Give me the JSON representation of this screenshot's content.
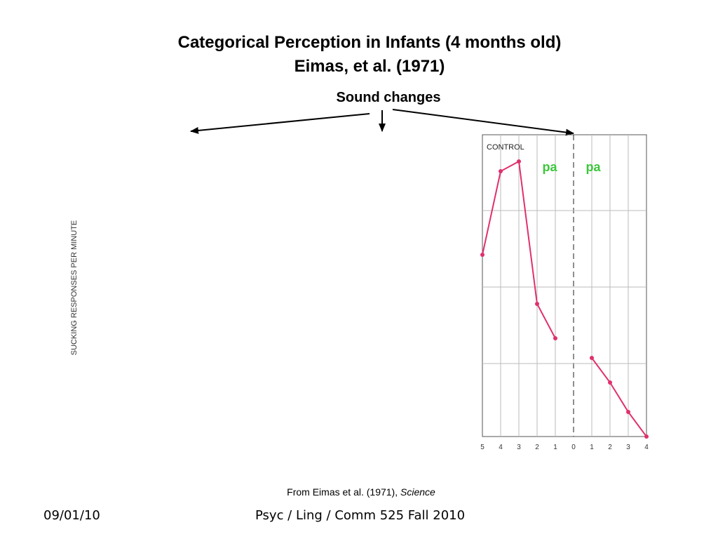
{
  "slide": {
    "title_line1": "Categorical Perception in Infants (4 months old)",
    "title_line2": "Eimas, et al. (1971)",
    "subtitle": "Sound changes",
    "citation_prefix": "From Eimas et al. (1971), ",
    "citation_journal": "Science",
    "footer_date": "09/01/10",
    "footer_course": "Psyc / Ling / Comm 525 Fall 2010"
  },
  "chart_data": {
    "type": "line",
    "ylabel": "SUCKING RESPONSES PER MINUTE",
    "panel_label": "CONTROL",
    "stimulus_labels": [
      "pa",
      "pa"
    ],
    "x_tick_labels": [
      "5",
      "4",
      "3",
      "2",
      "1",
      "0",
      "1",
      "2",
      "3",
      "4"
    ],
    "ylim": [
      0,
      60
    ],
    "grid": true,
    "colors": {
      "series": "#e0306e",
      "stimulus": "#3cc63c",
      "grid": "#bbbbbb"
    },
    "series": [
      {
        "segment": "before",
        "x": [
          "5",
          "4",
          "3",
          "2",
          "1"
        ],
        "y": [
          37,
          54,
          56,
          27,
          20
        ]
      },
      {
        "segment": "after",
        "x": [
          "1",
          "2",
          "3",
          "4"
        ],
        "y": [
          16,
          11,
          5,
          0
        ]
      }
    ]
  }
}
